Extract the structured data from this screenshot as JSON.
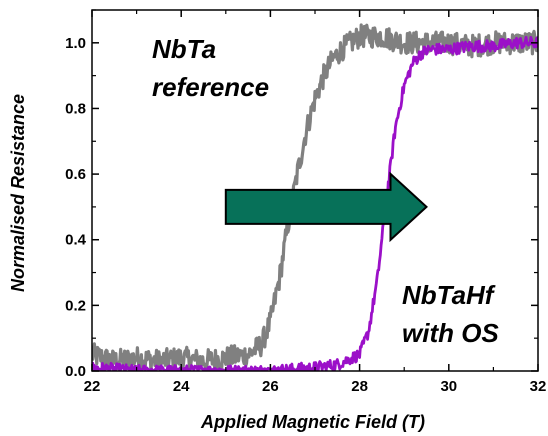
{
  "chart_data": {
    "type": "line",
    "title": "",
    "xlabel": "Applied Magnetic Field (T)",
    "ylabel": "Normalised Resistance",
    "xlim": [
      22,
      32
    ],
    "ylim": [
      0,
      1.1
    ],
    "x_ticks": [
      22,
      24,
      26,
      28,
      30,
      32
    ],
    "y_ticks": [
      0.0,
      0.2,
      0.4,
      0.6,
      0.8,
      1.0
    ],
    "x_tick_labels": [
      "22",
      "24",
      "26",
      "28",
      "30",
      "32"
    ],
    "y_tick_labels": [
      "0.0",
      "0.2",
      "0.4",
      "0.6",
      "0.8",
      "1.0"
    ],
    "grid": false,
    "legend": "none",
    "series": [
      {
        "color": "#808080",
        "x": [
          22.0,
          22.5,
          23.0,
          23.5,
          24.0,
          24.5,
          25.0,
          25.5,
          25.8,
          26.0,
          26.2,
          26.4,
          26.6,
          26.8,
          27.0,
          27.2,
          27.4,
          27.6,
          27.8,
          28.0,
          28.5,
          29.0,
          29.5,
          30.0,
          30.5,
          31.0,
          31.5,
          32.0
        ],
        "y": [
          0.05,
          0.03,
          0.04,
          0.03,
          0.04,
          0.03,
          0.04,
          0.05,
          0.08,
          0.15,
          0.28,
          0.45,
          0.6,
          0.73,
          0.83,
          0.9,
          0.95,
          0.98,
          1.0,
          1.02,
          1.02,
          1.0,
          1.0,
          1.0,
          0.99,
          1.0,
          1.0,
          1.0
        ]
      },
      {
        "color": "#9B10C8",
        "x": [
          22.0,
          23.0,
          24.0,
          25.0,
          26.0,
          27.0,
          27.5,
          28.0,
          28.2,
          28.4,
          28.6,
          28.8,
          29.0,
          29.2,
          29.4,
          29.6,
          30.0,
          30.5,
          31.0,
          31.5,
          32.0
        ],
        "y": [
          0.01,
          0.0,
          0.0,
          0.0,
          0.0,
          0.01,
          0.02,
          0.05,
          0.12,
          0.28,
          0.52,
          0.74,
          0.87,
          0.94,
          0.97,
          0.98,
          0.98,
          0.99,
          0.99,
          1.0,
          1.0
        ]
      }
    ],
    "annotations": [
      {
        "lines": [
          "NbTa",
          "reference"
        ]
      },
      {
        "lines": [
          "NbTaHf",
          "with OS"
        ]
      }
    ],
    "arrow": {
      "color": "#077159",
      "x_from": 25.0,
      "x_to": 29.5,
      "y": 0.5
    }
  }
}
